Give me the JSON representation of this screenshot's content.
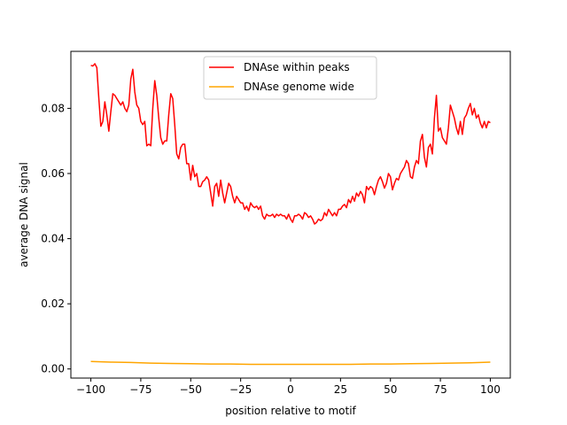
{
  "chart_data": {
    "type": "line",
    "xlabel": "position relative to motif",
    "ylabel": "average DNA signal",
    "xlim": [
      -110,
      110
    ],
    "ylim": [
      -0.0028,
      0.0975
    ],
    "xticks": [
      -100,
      -75,
      -50,
      -25,
      0,
      25,
      50,
      75,
      100
    ],
    "yticks": [
      0.0,
      0.02,
      0.04,
      0.06,
      0.08
    ],
    "xtick_labels": [
      "−100",
      "−75",
      "−50",
      "−25",
      "0",
      "25",
      "50",
      "75",
      "100"
    ],
    "ytick_labels": [
      "0.00",
      "0.02",
      "0.04",
      "0.06",
      "0.08"
    ],
    "grid": false,
    "legend_position": "top-center",
    "series": [
      {
        "name": "DNAse within peaks",
        "color": "#ff0000",
        "x": [
          -100,
          -99,
          -98,
          -97,
          -96,
          -95,
          -94,
          -93,
          -92,
          -91,
          -90,
          -89,
          -88,
          -87,
          -86,
          -85,
          -84,
          -83,
          -82,
          -81,
          -80,
          -79,
          -78,
          -77,
          -76,
          -75,
          -74,
          -73,
          -72,
          -71,
          -70,
          -69,
          -68,
          -67,
          -66,
          -65,
          -64,
          -63,
          -62,
          -61,
          -60,
          -59,
          -58,
          -57,
          -56,
          -55,
          -54,
          -53,
          -52,
          -51,
          -50,
          -49,
          -48,
          -47,
          -46,
          -45,
          -44,
          -43,
          -42,
          -41,
          -40,
          -39,
          -38,
          -37,
          -36,
          -35,
          -34,
          -33,
          -32,
          -31,
          -30,
          -29,
          -28,
          -27,
          -26,
          -25,
          -24,
          -23,
          -22,
          -21,
          -20,
          -19,
          -18,
          -17,
          -16,
          -15,
          -14,
          -13,
          -12,
          -11,
          -10,
          -9,
          -8,
          -7,
          -6,
          -5,
          -4,
          -3,
          -2,
          -1,
          0,
          1,
          2,
          3,
          4,
          5,
          6,
          7,
          8,
          9,
          10,
          11,
          12,
          13,
          14,
          15,
          16,
          17,
          18,
          19,
          20,
          21,
          22,
          23,
          24,
          25,
          26,
          27,
          28,
          29,
          30,
          31,
          32,
          33,
          34,
          35,
          36,
          37,
          38,
          39,
          40,
          41,
          42,
          43,
          44,
          45,
          46,
          47,
          48,
          49,
          50,
          51,
          52,
          53,
          54,
          55,
          56,
          57,
          58,
          59,
          60,
          61,
          62,
          63,
          64,
          65,
          66,
          67,
          68,
          69,
          70,
          71,
          72,
          73,
          74,
          75,
          76,
          77,
          78,
          79,
          80,
          81,
          82,
          83,
          84,
          85,
          86,
          87,
          88,
          89,
          90,
          91,
          92,
          93,
          94,
          95,
          96,
          97,
          98,
          99,
          100
        ],
        "y": [
          0.0932,
          0.093,
          0.0937,
          0.0925,
          0.083,
          0.0745,
          0.076,
          0.082,
          0.078,
          0.073,
          0.079,
          0.0845,
          0.084,
          0.083,
          0.082,
          0.081,
          0.082,
          0.08,
          0.079,
          0.081,
          0.089,
          0.092,
          0.085,
          0.081,
          0.08,
          0.076,
          0.075,
          0.076,
          0.0685,
          0.069,
          0.0685,
          0.08,
          0.0885,
          0.084,
          0.077,
          0.071,
          0.069,
          0.07,
          0.07,
          0.078,
          0.0845,
          0.083,
          0.075,
          0.066,
          0.0645,
          0.068,
          0.069,
          0.069,
          0.063,
          0.063,
          0.058,
          0.0625,
          0.059,
          0.06,
          0.056,
          0.056,
          0.0575,
          0.058,
          0.059,
          0.058,
          0.054,
          0.05,
          0.056,
          0.057,
          0.053,
          0.058,
          0.054,
          0.051,
          0.054,
          0.057,
          0.056,
          0.053,
          0.051,
          0.053,
          0.052,
          0.051,
          0.051,
          0.049,
          0.05,
          0.0485,
          0.051,
          0.05,
          0.0495,
          0.05,
          0.049,
          0.05,
          0.047,
          0.046,
          0.0475,
          0.047,
          0.047,
          0.0475,
          0.0465,
          0.0475,
          0.047,
          0.0475,
          0.047,
          0.047,
          0.046,
          0.0475,
          0.046,
          0.045,
          0.047,
          0.047,
          0.0475,
          0.047,
          0.046,
          0.048,
          0.0475,
          0.0465,
          0.047,
          0.046,
          0.0445,
          0.045,
          0.046,
          0.0455,
          0.046,
          0.048,
          0.047,
          0.049,
          0.048,
          0.047,
          0.048,
          0.047,
          0.049,
          0.049,
          0.05,
          0.0505,
          0.0495,
          0.052,
          0.051,
          0.053,
          0.0515,
          0.054,
          0.053,
          0.0545,
          0.0535,
          0.051,
          0.056,
          0.055,
          0.056,
          0.0555,
          0.0535,
          0.056,
          0.058,
          0.059,
          0.0575,
          0.0555,
          0.057,
          0.06,
          0.059,
          0.055,
          0.057,
          0.0585,
          0.058,
          0.06,
          0.061,
          0.062,
          0.064,
          0.063,
          0.059,
          0.0585,
          0.062,
          0.064,
          0.063,
          0.07,
          0.072,
          0.065,
          0.062,
          0.068,
          0.069,
          0.066,
          0.077,
          0.084,
          0.073,
          0.074,
          0.071,
          0.07,
          0.069,
          0.074,
          0.081,
          0.079,
          0.077,
          0.074,
          0.072,
          0.076,
          0.072,
          0.077,
          0.078,
          0.08,
          0.0815,
          0.078,
          0.08,
          0.077,
          0.078,
          0.0755,
          0.074,
          0.076,
          0.074,
          0.076,
          0.0756
        ]
      },
      {
        "name": "DNAse genome wide",
        "color": "#ffa500",
        "x": [
          -100,
          -90,
          -80,
          -70,
          -60,
          -50,
          -40,
          -30,
          -20,
          -10,
          0,
          10,
          20,
          30,
          40,
          50,
          60,
          70,
          80,
          90,
          100
        ],
        "y": [
          0.0023,
          0.0021,
          0.002,
          0.0018,
          0.0017,
          0.0016,
          0.0015,
          0.0015,
          0.0014,
          0.0014,
          0.0014,
          0.0014,
          0.0014,
          0.0014,
          0.0015,
          0.0015,
          0.0016,
          0.0017,
          0.0018,
          0.0019,
          0.0021
        ]
      }
    ]
  }
}
